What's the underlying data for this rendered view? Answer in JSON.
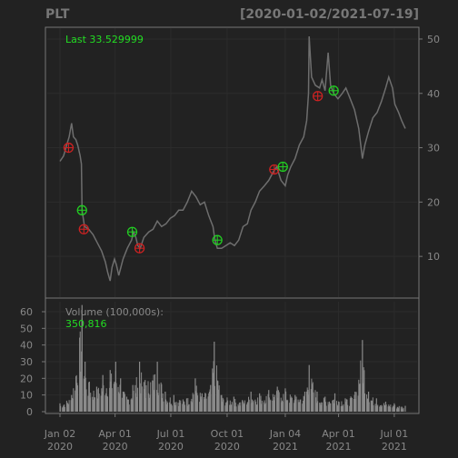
{
  "title": "PLT",
  "date_range": "[2020-01-02/2021-07-19]",
  "last_label": "Last 33.529999",
  "volume_label": "Volume (100,000s):",
  "volume_value": "350,816",
  "colors": {
    "background": "#222222",
    "price_line": "#6e6e6e",
    "volume_bar": "#8a8a8a",
    "grid": "#2c2c2c",
    "frame": "#777777",
    "buy_marker": "#22cc22",
    "sell_marker": "#cc2222",
    "green_text": "#22dd22"
  },
  "chart_data": {
    "type": "line",
    "symbol": "PLT",
    "price_ylim": [
      2.5,
      52
    ],
    "price_yticks": [
      10,
      20,
      30,
      40,
      50
    ],
    "volume_ylim": [
      0,
      66
    ],
    "volume_yticks": [
      0,
      10,
      20,
      30,
      40,
      50,
      60
    ],
    "x_range": [
      "2020-01-02",
      "2021-07-19"
    ],
    "x_ticks": [
      {
        "date": "2020-01-02",
        "line1": "Jan 02",
        "line2": "2020"
      },
      {
        "date": "2020-04-01",
        "line1": "Apr 01",
        "line2": "2020"
      },
      {
        "date": "2020-07-01",
        "line1": "Jul 01",
        "line2": "2020"
      },
      {
        "date": "2020-10-01",
        "line1": "Oct 01",
        "line2": "2020"
      },
      {
        "date": "2021-01-04",
        "line1": "Jan 04",
        "line2": "2021"
      },
      {
        "date": "2021-04-01",
        "line1": "Apr 01",
        "line2": "2021"
      },
      {
        "date": "2021-07-01",
        "line1": "Jul 01",
        "line2": "2021"
      }
    ],
    "price_series": [
      [
        "2020-01-02",
        27.5
      ],
      [
        "2020-01-08",
        28.5
      ],
      [
        "2020-01-13",
        30.5
      ],
      [
        "2020-01-17",
        32.0
      ],
      [
        "2020-01-21",
        34.5
      ],
      [
        "2020-01-24",
        32.0
      ],
      [
        "2020-01-28",
        31.5
      ],
      [
        "2020-01-31",
        30.5
      ],
      [
        "2020-02-04",
        28.5
      ],
      [
        "2020-02-06",
        27.0
      ],
      [
        "2020-02-07",
        18.5
      ],
      [
        "2020-02-11",
        15.5
      ],
      [
        "2020-02-18",
        15.0
      ],
      [
        "2020-02-25",
        14.0
      ],
      [
        "2020-03-03",
        12.5
      ],
      [
        "2020-03-10",
        11.0
      ],
      [
        "2020-03-16",
        9.0
      ],
      [
        "2020-03-20",
        7.0
      ],
      [
        "2020-03-24",
        5.5
      ],
      [
        "2020-03-27",
        8.0
      ],
      [
        "2020-03-31",
        9.5
      ],
      [
        "2020-04-03",
        8.5
      ],
      [
        "2020-04-07",
        6.5
      ],
      [
        "2020-04-14",
        9.5
      ],
      [
        "2020-04-21",
        11.5
      ],
      [
        "2020-04-28",
        13.0
      ],
      [
        "2020-05-01",
        14.5
      ],
      [
        "2020-05-05",
        13.5
      ],
      [
        "2020-05-08",
        12.0
      ],
      [
        "2020-05-12",
        11.5
      ],
      [
        "2020-05-18",
        13.5
      ],
      [
        "2020-05-26",
        14.5
      ],
      [
        "2020-06-02",
        15.0
      ],
      [
        "2020-06-09",
        16.5
      ],
      [
        "2020-06-16",
        15.5
      ],
      [
        "2020-06-23",
        16.0
      ],
      [
        "2020-06-30",
        17.0
      ],
      [
        "2020-07-07",
        17.5
      ],
      [
        "2020-07-14",
        18.5
      ],
      [
        "2020-07-21",
        18.5
      ],
      [
        "2020-07-28",
        20.0
      ],
      [
        "2020-08-04",
        22.0
      ],
      [
        "2020-08-11",
        21.0
      ],
      [
        "2020-08-18",
        19.5
      ],
      [
        "2020-08-25",
        20.0
      ],
      [
        "2020-09-01",
        17.5
      ],
      [
        "2020-09-08",
        15.5
      ],
      [
        "2020-09-11",
        13.0
      ],
      [
        "2020-09-15",
        11.5
      ],
      [
        "2020-09-22",
        11.5
      ],
      [
        "2020-09-29",
        12.0
      ],
      [
        "2020-10-06",
        12.5
      ],
      [
        "2020-10-13",
        12.0
      ],
      [
        "2020-10-20",
        13.0
      ],
      [
        "2020-10-27",
        15.5
      ],
      [
        "2020-11-03",
        16.0
      ],
      [
        "2020-11-09",
        18.5
      ],
      [
        "2020-11-16",
        20.0
      ],
      [
        "2020-11-23",
        22.0
      ],
      [
        "2020-12-01",
        23.0
      ],
      [
        "2020-12-08",
        24.0
      ],
      [
        "2020-12-15",
        25.5
      ],
      [
        "2020-12-21",
        26.5
      ],
      [
        "2020-12-28",
        24.0
      ],
      [
        "2021-01-04",
        23.0
      ],
      [
        "2021-01-08",
        25.0
      ],
      [
        "2021-01-13",
        26.5
      ],
      [
        "2021-01-20",
        28.0
      ],
      [
        "2021-01-27",
        30.5
      ],
      [
        "2021-02-03",
        32.0
      ],
      [
        "2021-02-08",
        35.0
      ],
      [
        "2021-02-11",
        40.0
      ],
      [
        "2021-02-12",
        50.5
      ],
      [
        "2021-02-16",
        43.0
      ],
      [
        "2021-02-22",
        41.5
      ],
      [
        "2021-03-01",
        41.0
      ],
      [
        "2021-03-05",
        42.5
      ],
      [
        "2021-03-10",
        40.5
      ],
      [
        "2021-03-15",
        47.5
      ],
      [
        "2021-03-19",
        41.5
      ],
      [
        "2021-03-24",
        40.0
      ],
      [
        "2021-03-31",
        39.0
      ],
      [
        "2021-04-07",
        40.0
      ],
      [
        "2021-04-13",
        41.0
      ],
      [
        "2021-04-20",
        39.0
      ],
      [
        "2021-04-27",
        37.0
      ],
      [
        "2021-05-04",
        33.5
      ],
      [
        "2021-05-10",
        28.0
      ],
      [
        "2021-05-14",
        30.5
      ],
      [
        "2021-05-20",
        33.0
      ],
      [
        "2021-05-27",
        35.5
      ],
      [
        "2021-06-03",
        36.5
      ],
      [
        "2021-06-10",
        38.5
      ],
      [
        "2021-06-17",
        41.0
      ],
      [
        "2021-06-22",
        43.0
      ],
      [
        "2021-06-28",
        41.0
      ],
      [
        "2021-07-02",
        38.0
      ],
      [
        "2021-07-08",
        36.5
      ],
      [
        "2021-07-13",
        35.0
      ],
      [
        "2021-07-19",
        33.53
      ]
    ],
    "buy_signals": [
      [
        "2020-02-07",
        18.5
      ],
      [
        "2020-04-29",
        14.5
      ],
      [
        "2020-09-15",
        13.0
      ],
      [
        "2020-12-31",
        26.5
      ],
      [
        "2021-03-24",
        40.5
      ]
    ],
    "sell_signals": [
      [
        "2020-01-16",
        30.0
      ],
      [
        "2020-02-10",
        15.0
      ],
      [
        "2020-05-11",
        11.5
      ],
      [
        "2020-12-17",
        26.0
      ],
      [
        "2021-02-26",
        39.5
      ]
    ],
    "volume_spikes": [
      [
        "2020-01-02",
        5
      ],
      [
        "2020-01-21",
        10
      ],
      [
        "2020-02-07",
        64
      ],
      [
        "2020-02-12",
        30
      ],
      [
        "2020-02-19",
        18
      ],
      [
        "2020-03-02",
        15
      ],
      [
        "2020-03-12",
        22
      ],
      [
        "2020-03-24",
        25
      ],
      [
        "2020-04-02",
        30
      ],
      [
        "2020-04-10",
        20
      ],
      [
        "2020-04-20",
        9
      ],
      [
        "2020-04-30",
        16
      ],
      [
        "2020-05-11",
        30
      ],
      [
        "2020-05-20",
        19
      ],
      [
        "2020-06-09",
        30
      ],
      [
        "2020-06-22",
        12
      ],
      [
        "2020-07-06",
        10
      ],
      [
        "2020-07-27",
        8
      ],
      [
        "2020-08-10",
        20
      ],
      [
        "2020-08-21",
        11
      ],
      [
        "2020-09-04",
        16
      ],
      [
        "2020-09-10",
        42
      ],
      [
        "2020-09-22",
        10
      ],
      [
        "2020-10-12",
        9
      ],
      [
        "2020-10-26",
        7
      ],
      [
        "2020-11-09",
        12
      ],
      [
        "2020-11-23",
        11
      ],
      [
        "2020-12-08",
        13
      ],
      [
        "2020-12-22",
        15
      ],
      [
        "2021-01-04",
        14
      ],
      [
        "2021-01-20",
        10
      ],
      [
        "2021-02-05",
        12
      ],
      [
        "2021-02-12",
        28
      ],
      [
        "2021-02-25",
        12
      ],
      [
        "2021-03-10",
        9
      ],
      [
        "2021-03-26",
        11
      ],
      [
        "2021-04-12",
        8
      ],
      [
        "2021-04-28",
        12
      ],
      [
        "2021-05-10",
        43
      ],
      [
        "2021-05-20",
        12
      ],
      [
        "2021-06-02",
        8
      ],
      [
        "2021-06-17",
        6
      ],
      [
        "2021-07-01",
        5
      ],
      [
        "2021-07-19",
        3.5
      ]
    ]
  }
}
